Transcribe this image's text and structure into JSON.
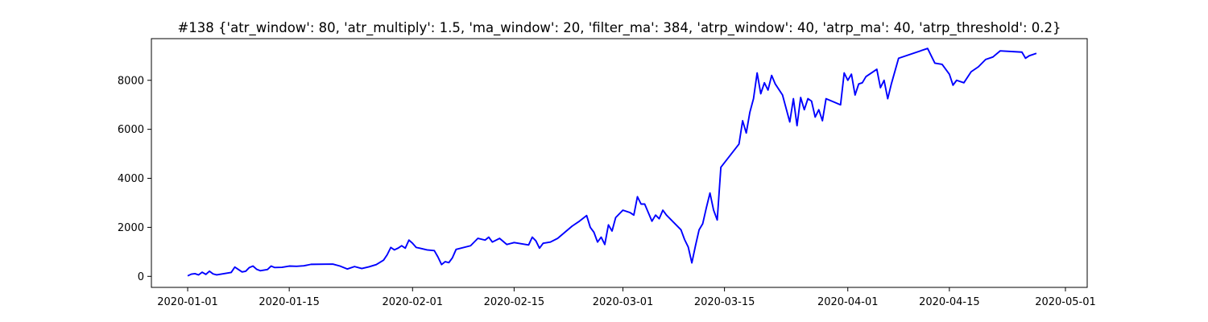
{
  "chart_data": {
    "type": "line",
    "title": "#138 {'atr_window': 80, 'atr_multiply': 1.5, 'ma_window': 20, 'filter_ma': 384, 'atrp_window': 40, 'atrp_ma': 40, 'atrp_threshold': 0.2}",
    "xlabel": "",
    "ylabel": "",
    "grid": false,
    "legend": "none",
    "xlim": [
      "2019-12-27",
      "2020-05-04"
    ],
    "ylim": [
      -450,
      9700
    ],
    "xticks": [
      {
        "date": "2020-01-01",
        "label": "2020-01-01"
      },
      {
        "date": "2020-01-15",
        "label": "2020-01-15"
      },
      {
        "date": "2020-02-01",
        "label": "2020-02-01"
      },
      {
        "date": "2020-02-15",
        "label": "2020-02-15"
      },
      {
        "date": "2020-03-01",
        "label": "2020-03-01"
      },
      {
        "date": "2020-03-15",
        "label": "2020-03-15"
      },
      {
        "date": "2020-04-01",
        "label": "2020-04-01"
      },
      {
        "date": "2020-04-15",
        "label": "2020-04-15"
      },
      {
        "date": "2020-05-01",
        "label": "2020-05-01"
      }
    ],
    "yticks": [
      {
        "value": 0,
        "label": "0"
      },
      {
        "value": 2000,
        "label": "2000"
      },
      {
        "value": 4000,
        "label": "4000"
      },
      {
        "value": 6000,
        "label": "6000"
      },
      {
        "value": 8000,
        "label": "8000"
      }
    ],
    "series": [
      {
        "color": "#0000ff",
        "points": [
          [
            "2020-01-01",
            20
          ],
          [
            "2020-01-01 12:00",
            90
          ],
          [
            "2020-01-02",
            110
          ],
          [
            "2020-01-02 12:00",
            60
          ],
          [
            "2020-01-03",
            170
          ],
          [
            "2020-01-03 12:00",
            80
          ],
          [
            "2020-01-04",
            210
          ],
          [
            "2020-01-04 12:00",
            100
          ],
          [
            "2020-01-05",
            60
          ],
          [
            "2020-01-07",
            160
          ],
          [
            "2020-01-07 12:00",
            380
          ],
          [
            "2020-01-08",
            280
          ],
          [
            "2020-01-08 12:00",
            180
          ],
          [
            "2020-01-09",
            210
          ],
          [
            "2020-01-09 12:00",
            360
          ],
          [
            "2020-01-10",
            420
          ],
          [
            "2020-01-10 12:00",
            290
          ],
          [
            "2020-01-11",
            230
          ],
          [
            "2020-01-12",
            280
          ],
          [
            "2020-01-12 12:00",
            420
          ],
          [
            "2020-01-13",
            360
          ],
          [
            "2020-01-14",
            370
          ],
          [
            "2020-01-15",
            420
          ],
          [
            "2020-01-16",
            410
          ],
          [
            "2020-01-17",
            430
          ],
          [
            "2020-01-18",
            490
          ],
          [
            "2020-01-21",
            500
          ],
          [
            "2020-01-22",
            420
          ],
          [
            "2020-01-23",
            300
          ],
          [
            "2020-01-24",
            400
          ],
          [
            "2020-01-25",
            320
          ],
          [
            "2020-01-26",
            390
          ],
          [
            "2020-01-27",
            480
          ],
          [
            "2020-01-28",
            660
          ],
          [
            "2020-01-28 12:00",
            880
          ],
          [
            "2020-01-29",
            1180
          ],
          [
            "2020-01-29 12:00",
            1080
          ],
          [
            "2020-01-30",
            1150
          ],
          [
            "2020-01-30 12:00",
            1250
          ],
          [
            "2020-01-31",
            1150
          ],
          [
            "2020-01-31 12:00",
            1480
          ],
          [
            "2020-02-01",
            1350
          ],
          [
            "2020-02-01 12:00",
            1180
          ],
          [
            "2020-02-02",
            1150
          ],
          [
            "2020-02-03",
            1080
          ],
          [
            "2020-02-04",
            1050
          ],
          [
            "2020-02-04 12:00",
            790
          ],
          [
            "2020-02-05",
            480
          ],
          [
            "2020-02-05 12:00",
            600
          ],
          [
            "2020-02-06",
            560
          ],
          [
            "2020-02-06 12:00",
            760
          ],
          [
            "2020-02-07",
            1100
          ],
          [
            "2020-02-09",
            1250
          ],
          [
            "2020-02-10",
            1550
          ],
          [
            "2020-02-11",
            1480
          ],
          [
            "2020-02-11 12:00",
            1600
          ],
          [
            "2020-02-12",
            1400
          ],
          [
            "2020-02-13",
            1550
          ],
          [
            "2020-02-14",
            1300
          ],
          [
            "2020-02-15",
            1380
          ],
          [
            "2020-02-17",
            1280
          ],
          [
            "2020-02-17 12:00",
            1600
          ],
          [
            "2020-02-18",
            1450
          ],
          [
            "2020-02-18 12:00",
            1150
          ],
          [
            "2020-02-19",
            1350
          ],
          [
            "2020-02-20",
            1400
          ],
          [
            "2020-02-21",
            1550
          ],
          [
            "2020-02-22",
            1800
          ],
          [
            "2020-02-23",
            2050
          ],
          [
            "2020-02-24",
            2250
          ],
          [
            "2020-02-25",
            2480
          ],
          [
            "2020-02-25 12:00",
            2000
          ],
          [
            "2020-02-26",
            1800
          ],
          [
            "2020-02-26 12:00",
            1400
          ],
          [
            "2020-02-27",
            1600
          ],
          [
            "2020-02-27 12:00",
            1300
          ],
          [
            "2020-02-28",
            2100
          ],
          [
            "2020-02-28 12:00",
            1850
          ],
          [
            "2020-02-29",
            2400
          ],
          [
            "2020-03-01",
            2700
          ],
          [
            "2020-03-02",
            2600
          ],
          [
            "2020-03-02 12:00",
            2500
          ],
          [
            "2020-03-03",
            3250
          ],
          [
            "2020-03-03 12:00",
            2950
          ],
          [
            "2020-03-04",
            2950
          ],
          [
            "2020-03-04 12:00",
            2600
          ],
          [
            "2020-03-05",
            2250
          ],
          [
            "2020-03-05 12:00",
            2500
          ],
          [
            "2020-03-06",
            2350
          ],
          [
            "2020-03-06 12:00",
            2700
          ],
          [
            "2020-03-07",
            2500
          ],
          [
            "2020-03-08",
            2200
          ],
          [
            "2020-03-09",
            1900
          ],
          [
            "2020-03-09 12:00",
            1500
          ],
          [
            "2020-03-10",
            1200
          ],
          [
            "2020-03-10 12:00",
            550
          ],
          [
            "2020-03-11",
            1250
          ],
          [
            "2020-03-11 12:00",
            1900
          ],
          [
            "2020-03-12",
            2150
          ],
          [
            "2020-03-12 12:00",
            2800
          ],
          [
            "2020-03-13",
            3400
          ],
          [
            "2020-03-13 12:00",
            2700
          ],
          [
            "2020-03-14",
            2300
          ],
          [
            "2020-03-14 12:00",
            4450
          ],
          [
            "2020-03-17",
            5400
          ],
          [
            "2020-03-17 12:00",
            6350
          ],
          [
            "2020-03-18",
            5850
          ],
          [
            "2020-03-18 12:00",
            6700
          ],
          [
            "2020-03-19",
            7250
          ],
          [
            "2020-03-19 12:00",
            8300
          ],
          [
            "2020-03-20",
            7450
          ],
          [
            "2020-03-20 12:00",
            7900
          ],
          [
            "2020-03-21",
            7600
          ],
          [
            "2020-03-21 12:00",
            8200
          ],
          [
            "2020-03-22",
            7850
          ],
          [
            "2020-03-23",
            7400
          ],
          [
            "2020-03-24",
            6300
          ],
          [
            "2020-03-24 12:00",
            7250
          ],
          [
            "2020-03-25",
            6150
          ],
          [
            "2020-03-25 12:00",
            7300
          ],
          [
            "2020-03-26",
            6800
          ],
          [
            "2020-03-26 12:00",
            7250
          ],
          [
            "2020-03-27",
            7150
          ],
          [
            "2020-03-27 12:00",
            6500
          ],
          [
            "2020-03-28",
            6800
          ],
          [
            "2020-03-28 12:00",
            6350
          ],
          [
            "2020-03-29",
            7250
          ],
          [
            "2020-03-31",
            7000
          ],
          [
            "2020-03-31 12:00",
            8300
          ],
          [
            "2020-04-01",
            8000
          ],
          [
            "2020-04-01 12:00",
            8250
          ],
          [
            "2020-04-02",
            7400
          ],
          [
            "2020-04-02 12:00",
            7850
          ],
          [
            "2020-04-03",
            7900
          ],
          [
            "2020-04-03 12:00",
            8150
          ],
          [
            "2020-04-05",
            8450
          ],
          [
            "2020-04-05 12:00",
            7700
          ],
          [
            "2020-04-06",
            8000
          ],
          [
            "2020-04-06 12:00",
            7250
          ],
          [
            "2020-04-07",
            7850
          ],
          [
            "2020-04-08",
            8900
          ],
          [
            "2020-04-12",
            9300
          ],
          [
            "2020-04-13",
            8700
          ],
          [
            "2020-04-14",
            8650
          ],
          [
            "2020-04-15",
            8250
          ],
          [
            "2020-04-15 12:00",
            7800
          ],
          [
            "2020-04-16",
            8000
          ],
          [
            "2020-04-17",
            7900
          ],
          [
            "2020-04-18",
            8350
          ],
          [
            "2020-04-19",
            8550
          ],
          [
            "2020-04-20",
            8850
          ],
          [
            "2020-04-21",
            8950
          ],
          [
            "2020-04-22",
            9200
          ],
          [
            "2020-04-25",
            9150
          ],
          [
            "2020-04-25 12:00",
            8900
          ],
          [
            "2020-04-26",
            9000
          ],
          [
            "2020-04-27",
            9100
          ]
        ]
      }
    ]
  }
}
